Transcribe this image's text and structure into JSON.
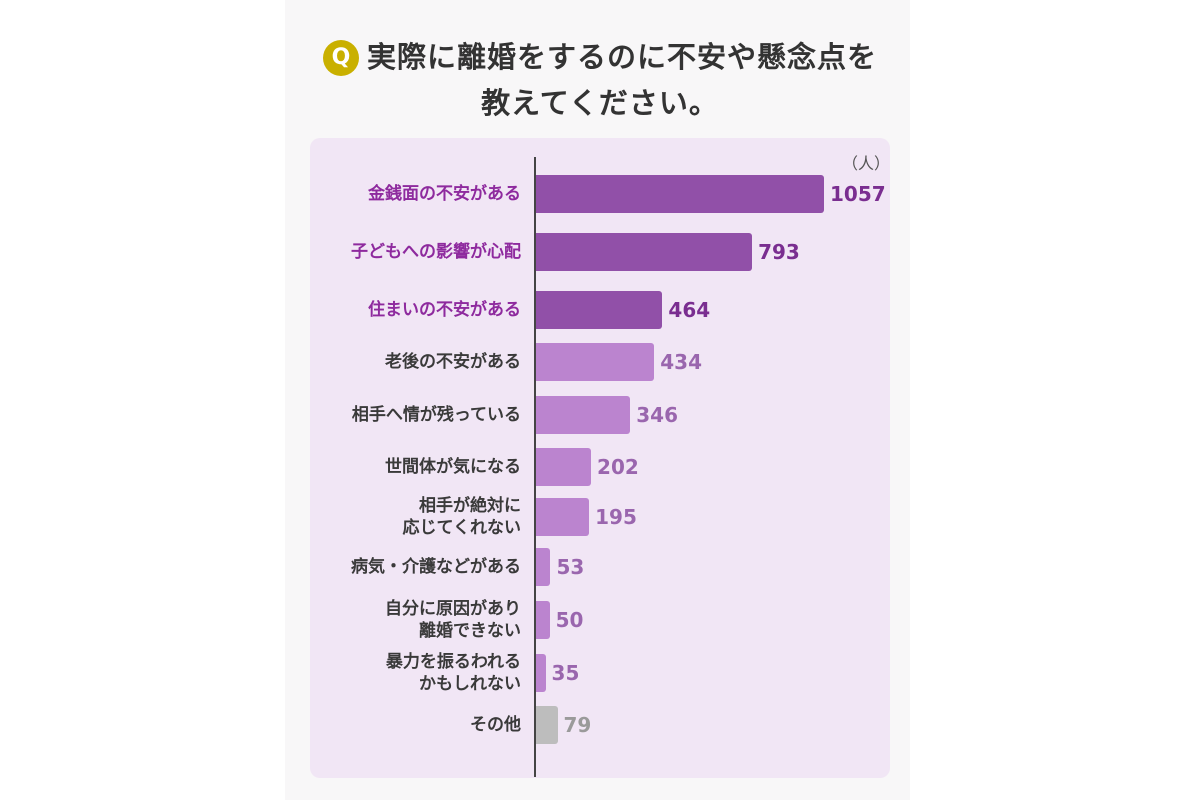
{
  "title": {
    "badge": "Q",
    "line1": "実際に離婚をするのに不安や懸念点を",
    "line2": "教えてください。"
  },
  "chart_data": {
    "type": "bar",
    "orientation": "horizontal",
    "unit_label": "（人）",
    "categories": [
      "金銭面の不安がある",
      "子どもへの影響が心配",
      "住まいの不安がある",
      "老後の不安がある",
      "相手へ情が残っている",
      "世間体が気になる",
      "相手が絶対に\n応じてくれない",
      "病気・介護などがある",
      "自分に原因があり\n離婚できない",
      "暴力を振るわれる\nかもしれない",
      "その他"
    ],
    "values": [
      1057,
      793,
      464,
      434,
      346,
      202,
      195,
      53,
      50,
      35,
      79
    ],
    "highlight": [
      true,
      true,
      true,
      false,
      false,
      false,
      false,
      false,
      false,
      false,
      false
    ],
    "colors": {
      "highlight_bar": "#9150a8",
      "highlight_label": "#8e2a9e",
      "highlight_value": "#7a2e90",
      "bar": "#bb84cf",
      "value": "#9a66ae",
      "other_bar": "#bdbdbd",
      "other_value": "#9a9a9a",
      "label": "#3a3a3a"
    }
  }
}
